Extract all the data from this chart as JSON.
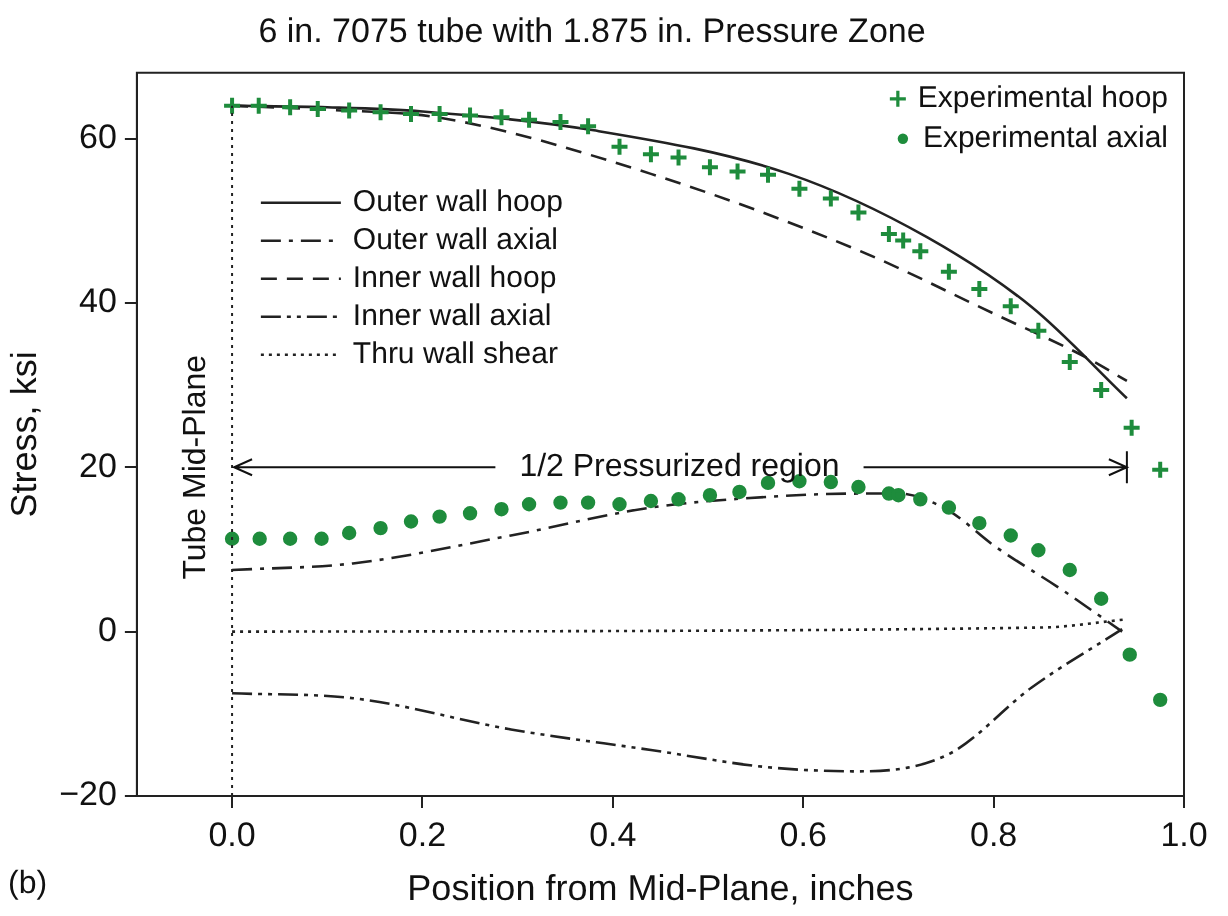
{
  "chart_data": {
    "type": "line",
    "title": "6 in. 7075 tube with 1.875 in. Pressure Zone",
    "xlabel": "Position from Mid-Plane, inches",
    "ylabel": "Stress, ksi",
    "xlim": [
      -0.1,
      1.0
    ],
    "ylim": [
      -20,
      68
    ],
    "xticks": [
      {
        "value": 0,
        "label": "0.0"
      },
      {
        "value": 0.2,
        "label": "0.2"
      },
      {
        "value": 0.4,
        "label": "0.4"
      },
      {
        "value": 0.6,
        "label": "0.6"
      },
      {
        "value": 0.8,
        "label": "0.8"
      },
      {
        "value": 1.0,
        "label": "1.0"
      }
    ],
    "yticks": [
      -20,
      0,
      20,
      40,
      60
    ],
    "grid": false,
    "legend": "top right",
    "series": [
      {
        "name": "Outer wall hoop",
        "line_style": "solid",
        "marker": "none",
        "color": "#222222",
        "x": [
          0,
          0.1,
          0.2,
          0.38,
          0.585,
          0.73,
          0.84,
          0.94
        ],
        "values": [
          64,
          63.8,
          63.3,
          61,
          55.7,
          48,
          39.5,
          28.4
        ]
      },
      {
        "name": "Outer wall axial",
        "line_style": "dashdot",
        "marker": "none",
        "color": "#222222",
        "x": [
          0,
          0.127,
          0.293,
          0.44,
          0.563,
          0.658,
          0.7,
          0.753,
          0.8,
          0.873,
          0.935
        ],
        "values": [
          7.5,
          8.3,
          11.7,
          15.1,
          16.4,
          16.8,
          16.8,
          14.7,
          10.5,
          5,
          0
        ]
      },
      {
        "name": "Inner wall hoop",
        "line_style": "dashed",
        "marker": "none",
        "color": "#222222",
        "x": [
          0,
          0.1,
          0.22,
          0.44,
          0.66,
          0.8,
          0.9,
          0.94
        ],
        "values": [
          64,
          63.5,
          62.5,
          55.7,
          46.3,
          38.7,
          33.2,
          30.5
        ]
      },
      {
        "name": "Inner wall axial",
        "line_style": "dashdotdot",
        "marker": "none",
        "color": "#222222",
        "x": [
          0,
          0.127,
          0.293,
          0.44,
          0.563,
          0.658,
          0.753,
          0.84,
          0.935
        ],
        "values": [
          -7.5,
          -8.1,
          -11.9,
          -14.4,
          -16.5,
          -17,
          -14.9,
          -6.8,
          0.3
        ]
      },
      {
        "name": "Thru wall shear",
        "line_style": "dotted",
        "marker": "none",
        "color": "#222222",
        "x": [
          0,
          0.85,
          0.94
        ],
        "values": [
          0,
          0.5,
          1.5
        ]
      },
      {
        "name": "Experimental hoop",
        "type": "scatter",
        "marker": "cross",
        "color": "#1e8c3c",
        "x": [
          0,
          0.028,
          0.061,
          0.09,
          0.123,
          0.156,
          0.188,
          0.218,
          0.25,
          0.283,
          0.312,
          0.345,
          0.374,
          0.407,
          0.44,
          0.469,
          0.502,
          0.531,
          0.563,
          0.596,
          0.629,
          0.658,
          0.69,
          0.705,
          0.723,
          0.753,
          0.785,
          0.818,
          0.847,
          0.88,
          0.913,
          0.945,
          0.975
        ],
        "values": [
          64,
          64,
          63.8,
          63.6,
          63.4,
          63.2,
          63,
          63,
          62.8,
          62.6,
          62.3,
          62,
          61.5,
          59,
          58.1,
          57.7,
          56.5,
          56,
          55.6,
          53.9,
          52.7,
          51,
          48.4,
          47.6,
          46.3,
          43.8,
          41.7,
          39.6,
          36.6,
          32.8,
          29.4,
          24.8,
          19.7
        ]
      },
      {
        "name": "Experimental axial",
        "type": "scatter",
        "marker": "circle",
        "color": "#1e8c3c",
        "x": [
          0,
          0.029,
          0.061,
          0.094,
          0.123,
          0.156,
          0.188,
          0.218,
          0.25,
          0.283,
          0.312,
          0.345,
          0.374,
          0.407,
          0.44,
          0.469,
          0.502,
          0.533,
          0.563,
          0.596,
          0.629,
          0.658,
          0.69,
          0.7,
          0.723,
          0.753,
          0.785,
          0.818,
          0.847,
          0.88,
          0.913,
          0.943,
          0.975
        ],
        "values": [
          11.3,
          11.3,
          11.3,
          11.3,
          12,
          12.6,
          13.4,
          14,
          14.4,
          14.9,
          15.5,
          15.7,
          15.7,
          15.5,
          15.9,
          16.1,
          16.6,
          17,
          18.1,
          18.3,
          18.2,
          17.6,
          16.8,
          16.6,
          16.1,
          15.1,
          13.2,
          11.7,
          9.9,
          7.5,
          4,
          -2.8,
          -8.3
        ]
      }
    ],
    "ref_lines": [
      {
        "axis": "x",
        "value": 0,
        "label": "Tube Mid-Plane",
        "line_style": "dotted"
      }
    ],
    "annotations": [
      {
        "text": "1/2 Pressurized region",
        "x": 0,
        "y": 20
      },
      "(b)"
    ]
  }
}
